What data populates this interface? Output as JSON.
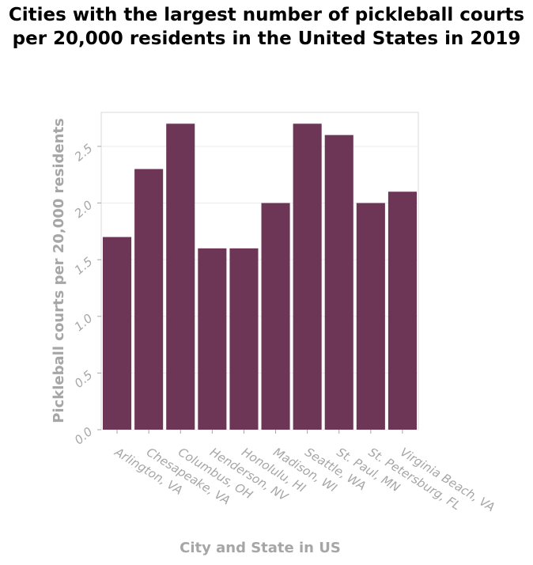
{
  "chart_data": {
    "type": "bar",
    "title": "Cities with the largest number of pickleball courts per 20,000 residents in the United States in 2019",
    "xlabel": "City and State in US",
    "ylabel": "Pickleball courts per 20,000 residents",
    "categories": [
      "Arlington, VA",
      "Chesapeake, VA",
      "Columbus, OH",
      "Henderson, NV",
      "Honolulu, HI",
      "Madison, WI",
      "Seattle, WA",
      "St. Paul, MN",
      "St. Petersburg, FL",
      "Virginia Beach, VA"
    ],
    "values": [
      1.7,
      2.3,
      2.7,
      1.6,
      1.6,
      2.0,
      2.7,
      2.6,
      2.0,
      2.1
    ],
    "ylim": [
      0,
      2.8
    ],
    "yticks": [
      "0.0",
      "0.5",
      "1.0",
      "1.5",
      "2.0",
      "2.5"
    ],
    "bar_color": "#6d3656",
    "grid": true,
    "legend": "none"
  }
}
